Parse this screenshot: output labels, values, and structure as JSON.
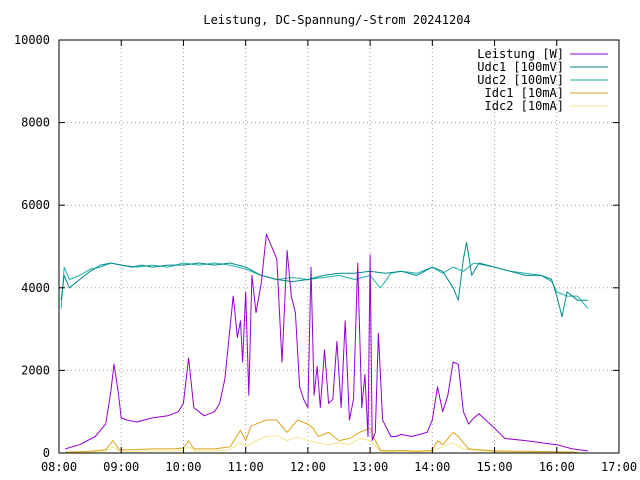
{
  "chart_data": {
    "type": "line",
    "title": "Leistung, DC-Spannung/-Strom 20241204",
    "xlabel": "",
    "ylabel": "",
    "xlim": [
      "08:00",
      "17:00"
    ],
    "ylim": [
      0,
      10000
    ],
    "x_ticks": [
      "08:00",
      "09:00",
      "10:00",
      "11:00",
      "12:00",
      "13:00",
      "14:00",
      "15:00",
      "16:00",
      "17:00"
    ],
    "y_ticks": [
      "0",
      "2000",
      "4000",
      "6000",
      "8000",
      "10000"
    ],
    "grid": true,
    "legend_position": "top-right",
    "series": [
      {
        "name": "Leistung [W]",
        "color": "#9400d3",
        "x": [
          "08:06",
          "08:20",
          "08:35",
          "08:45",
          "08:50",
          "08:53",
          "08:57",
          "09:00",
          "09:05",
          "09:15",
          "09:30",
          "09:45",
          "09:55",
          "10:00",
          "10:05",
          "10:10",
          "10:20",
          "10:30",
          "10:35",
          "10:40",
          "10:48",
          "10:52",
          "10:55",
          "10:57",
          "11:00",
          "11:03",
          "11:06",
          "11:10",
          "11:15",
          "11:20",
          "11:30",
          "11:35",
          "11:40",
          "11:44",
          "11:48",
          "11:52",
          "11:56",
          "12:00",
          "12:03",
          "12:06",
          "12:09",
          "12:12",
          "12:16",
          "12:20",
          "12:24",
          "12:28",
          "12:32",
          "12:36",
          "12:40",
          "12:44",
          "12:48",
          "12:52",
          "12:55",
          "12:58",
          "13:00",
          "13:02",
          "13:05",
          "13:08",
          "13:12",
          "13:16",
          "13:20",
          "13:25",
          "13:30",
          "13:40",
          "13:55",
          "14:00",
          "14:05",
          "14:10",
          "14:15",
          "14:20",
          "14:25",
          "14:30",
          "14:35",
          "14:40",
          "14:45",
          "15:00",
          "15:10",
          "15:30",
          "15:45",
          "16:00",
          "16:15",
          "16:30"
        ],
        "values": [
          100,
          200,
          400,
          700,
          1500,
          2150,
          1500,
          850,
          800,
          750,
          850,
          900,
          1000,
          1200,
          2300,
          1100,
          900,
          1000,
          1200,
          1800,
          3800,
          2800,
          3200,
          2200,
          3900,
          1400,
          4300,
          3400,
          4100,
          5300,
          4700,
          2200,
          4900,
          3800,
          3400,
          1600,
          1300,
          1100,
          4500,
          1400,
          2100,
          1100,
          2500,
          1200,
          1300,
          2700,
          1100,
          3200,
          800,
          1300,
          4600,
          1100,
          1900,
          400,
          4800,
          300,
          500,
          2900,
          800,
          600,
          400,
          400,
          450,
          400,
          500,
          800,
          1600,
          1000,
          1400,
          2200,
          2150,
          1000,
          700,
          850,
          950,
          600,
          350,
          300,
          250,
          200,
          100,
          50
        ]
      },
      {
        "name": "Udc1 [100mV]",
        "color": "#008b8b",
        "x": [
          "08:02",
          "08:05",
          "08:10",
          "08:20",
          "08:30",
          "08:40",
          "08:50",
          "09:00",
          "09:10",
          "09:20",
          "09:30",
          "09:45",
          "10:00",
          "10:15",
          "10:30",
          "10:45",
          "11:00",
          "11:15",
          "11:30",
          "11:45",
          "12:00",
          "12:15",
          "12:30",
          "12:45",
          "13:00",
          "13:15",
          "13:30",
          "13:45",
          "14:00",
          "14:10",
          "14:20",
          "14:25",
          "14:30",
          "14:33",
          "14:38",
          "14:45",
          "15:00",
          "15:15",
          "15:30",
          "15:45",
          "15:55",
          "16:00",
          "16:05",
          "16:10",
          "16:20",
          "16:30"
        ],
        "values": [
          3700,
          4300,
          4000,
          4200,
          4400,
          4550,
          4600,
          4550,
          4500,
          4550,
          4500,
          4550,
          4550,
          4600,
          4550,
          4600,
          4500,
          4300,
          4200,
          4150,
          4200,
          4300,
          4350,
          4350,
          4400,
          4350,
          4400,
          4300,
          4500,
          4400,
          4000,
          3700,
          4700,
          5100,
          4300,
          4600,
          4500,
          4400,
          4300,
          4300,
          4200,
          3800,
          3300,
          3900,
          3700,
          3700
        ]
      },
      {
        "name": "Udc2 [100mV]",
        "color": "#20b2aa",
        "x": [
          "08:02",
          "08:05",
          "08:10",
          "08:20",
          "08:30",
          "08:40",
          "08:50",
          "09:00",
          "09:15",
          "09:30",
          "09:45",
          "10:00",
          "10:15",
          "10:30",
          "10:45",
          "11:00",
          "11:15",
          "11:30",
          "11:45",
          "12:00",
          "12:15",
          "12:30",
          "12:45",
          "13:00",
          "13:10",
          "13:20",
          "13:30",
          "13:45",
          "14:00",
          "14:10",
          "14:20",
          "14:30",
          "14:40",
          "15:00",
          "15:15",
          "15:30",
          "15:45",
          "15:55",
          "16:00",
          "16:10",
          "16:20",
          "16:30"
        ],
        "values": [
          3500,
          4500,
          4200,
          4300,
          4450,
          4500,
          4600,
          4550,
          4500,
          4550,
          4500,
          4600,
          4550,
          4600,
          4550,
          4450,
          4300,
          4200,
          4250,
          4200,
          4250,
          4300,
          4200,
          4300,
          4000,
          4350,
          4400,
          4350,
          4500,
          4350,
          4500,
          4400,
          4600,
          4500,
          4400,
          4350,
          4300,
          4150,
          3900,
          3800,
          3800,
          3500
        ]
      },
      {
        "name": "Idc1 [10mA]",
        "color": "#daa520",
        "x": [
          "08:06",
          "08:30",
          "08:45",
          "08:52",
          "08:58",
          "09:10",
          "09:30",
          "09:50",
          "10:00",
          "10:05",
          "10:10",
          "10:30",
          "10:45",
          "10:55",
          "11:00",
          "11:05",
          "11:10",
          "11:20",
          "11:30",
          "11:40",
          "11:50",
          "12:00",
          "12:05",
          "12:10",
          "12:20",
          "12:30",
          "12:40",
          "12:50",
          "13:00",
          "13:05",
          "13:10",
          "13:20",
          "13:30",
          "13:45",
          "14:00",
          "14:05",
          "14:10",
          "14:20",
          "14:25",
          "14:35",
          "14:45",
          "15:00",
          "15:30",
          "16:00",
          "16:20"
        ],
        "values": [
          20,
          40,
          80,
          300,
          80,
          80,
          100,
          100,
          120,
          300,
          100,
          100,
          150,
          550,
          300,
          650,
          700,
          800,
          800,
          500,
          800,
          700,
          600,
          400,
          500,
          300,
          350,
          500,
          600,
          300,
          60,
          50,
          60,
          40,
          60,
          300,
          200,
          500,
          400,
          100,
          80,
          50,
          40,
          30,
          20
        ]
      },
      {
        "name": "Idc2 [10mA]",
        "color": "#f0e68c",
        "x": [
          "08:06",
          "08:30",
          "08:45",
          "08:52",
          "08:58",
          "09:10",
          "09:30",
          "09:50",
          "10:00",
          "10:05",
          "10:10",
          "10:30",
          "10:45",
          "10:55",
          "11:00",
          "11:10",
          "11:20",
          "11:30",
          "11:40",
          "11:50",
          "12:00",
          "12:10",
          "12:20",
          "12:30",
          "12:40",
          "12:50",
          "13:00",
          "13:10",
          "13:20",
          "13:30",
          "13:45",
          "14:00",
          "14:10",
          "14:20",
          "14:30",
          "14:45",
          "15:00",
          "15:30",
          "16:00",
          "16:20"
        ],
        "values": [
          10,
          20,
          40,
          150,
          40,
          40,
          50,
          50,
          60,
          150,
          50,
          50,
          80,
          250,
          150,
          300,
          400,
          420,
          300,
          380,
          300,
          250,
          200,
          250,
          200,
          350,
          300,
          40,
          30,
          40,
          30,
          40,
          150,
          250,
          100,
          50,
          30,
          20,
          20,
          10
        ]
      }
    ]
  }
}
